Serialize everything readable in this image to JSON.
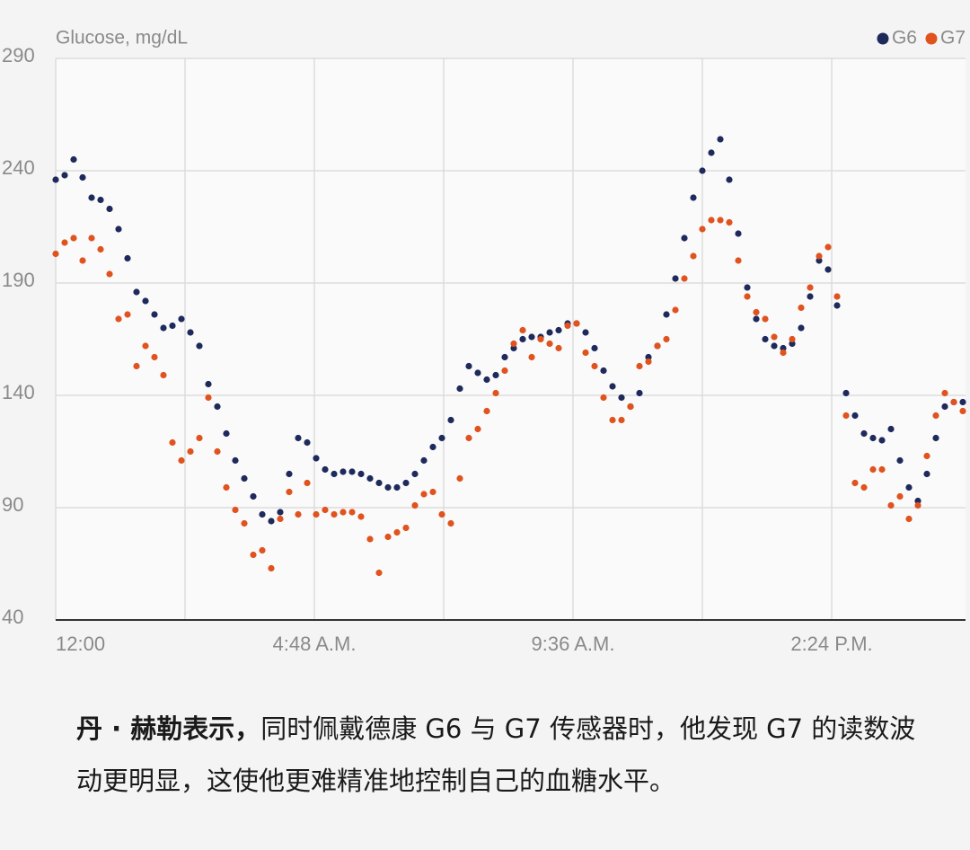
{
  "chart_data": {
    "type": "scatter",
    "y_label": "Glucose, mg/dL",
    "ylim": [
      40,
      290
    ],
    "yticks": [
      40,
      90,
      140,
      190,
      240,
      290
    ],
    "xlim": [
      0,
      1013
    ],
    "xticks": [
      {
        "value": 0,
        "label": "12:00"
      },
      {
        "value": 144,
        "label": null
      },
      {
        "value": 288,
        "label": "4:48 A.M."
      },
      {
        "value": 432,
        "label": null
      },
      {
        "value": 576,
        "label": "9:36 A.M."
      },
      {
        "value": 720,
        "label": null
      },
      {
        "value": 864,
        "label": "2:24 P.M."
      }
    ],
    "grid": true,
    "legend": "top-right",
    "x": [
      0,
      10,
      20,
      30,
      40,
      50,
      60,
      70,
      80,
      90,
      100,
      110,
      120,
      130,
      140,
      150,
      160,
      170,
      180,
      190,
      200,
      210,
      220,
      230,
      240,
      250,
      260,
      270,
      280,
      290,
      300,
      310,
      320,
      330,
      340,
      350,
      360,
      370,
      380,
      390,
      400,
      410,
      420,
      430,
      440,
      450,
      460,
      470,
      480,
      490,
      500,
      510,
      520,
      530,
      540,
      550,
      560,
      570,
      580,
      590,
      600,
      610,
      620,
      630,
      640,
      650,
      660,
      670,
      680,
      690,
      700,
      710,
      720,
      730,
      740,
      750,
      760,
      770,
      780,
      790,
      800,
      810,
      820,
      830,
      840,
      850,
      860,
      870,
      880,
      890,
      900,
      910,
      920,
      930,
      940,
      950,
      960,
      970,
      980,
      990,
      1000,
      1010
    ],
    "series": [
      {
        "name": "G6",
        "color": "#1f2a5c",
        "values": [
          236,
          238,
          245,
          237,
          228,
          227,
          223,
          214,
          201,
          186,
          182,
          176,
          170,
          171,
          174,
          168,
          162,
          145,
          135,
          123,
          111,
          103,
          95,
          87,
          84,
          88,
          105,
          121,
          119,
          112,
          107,
          105,
          106,
          106,
          105,
          103,
          101,
          99,
          99,
          101,
          105,
          111,
          117,
          121,
          129,
          143,
          153,
          150,
          147,
          149,
          157,
          161,
          165,
          166,
          166,
          168,
          169,
          172,
          172,
          168,
          161,
          151,
          144,
          139,
          135,
          141,
          157,
          162,
          176,
          192,
          210,
          228,
          240,
          248,
          254,
          236,
          212,
          188,
          174,
          165,
          162,
          161,
          163,
          170,
          184,
          200,
          196,
          180,
          141,
          131,
          123,
          121,
          120,
          125,
          111,
          99,
          93,
          105,
          121,
          135,
          137,
          137
        ]
      },
      {
        "name": "G7",
        "color": "#e0531f",
        "values": [
          203,
          208,
          210,
          200,
          210,
          205,
          194,
          174,
          176,
          153,
          162,
          157,
          149,
          119,
          111,
          115,
          121,
          139,
          115,
          99,
          89,
          83,
          69,
          71,
          63,
          85,
          97,
          87,
          101,
          87,
          89,
          87,
          88,
          88,
          86,
          76,
          61,
          77,
          79,
          81,
          91,
          96,
          97,
          87,
          83,
          103,
          121,
          125,
          133,
          141,
          151,
          163,
          169,
          157,
          165,
          163,
          161,
          171,
          172,
          159,
          153,
          139,
          129,
          129,
          135,
          153,
          155,
          162,
          165,
          178,
          192,
          202,
          214,
          218,
          218,
          217,
          200,
          184,
          177,
          174,
          166,
          159,
          165,
          179,
          188,
          202,
          206,
          184,
          131,
          101,
          99,
          107,
          107,
          91,
          95,
          85,
          91,
          113,
          131,
          141,
          137,
          133
        ]
      }
    ]
  },
  "caption": {
    "lead": "丹 · 赫勒表示，",
    "text": "同时佩戴德康 G6 与 G7 传感器时，他发现 G7 的读数波动更明显，这使他更难精准地控制自己的血糖水平。"
  }
}
